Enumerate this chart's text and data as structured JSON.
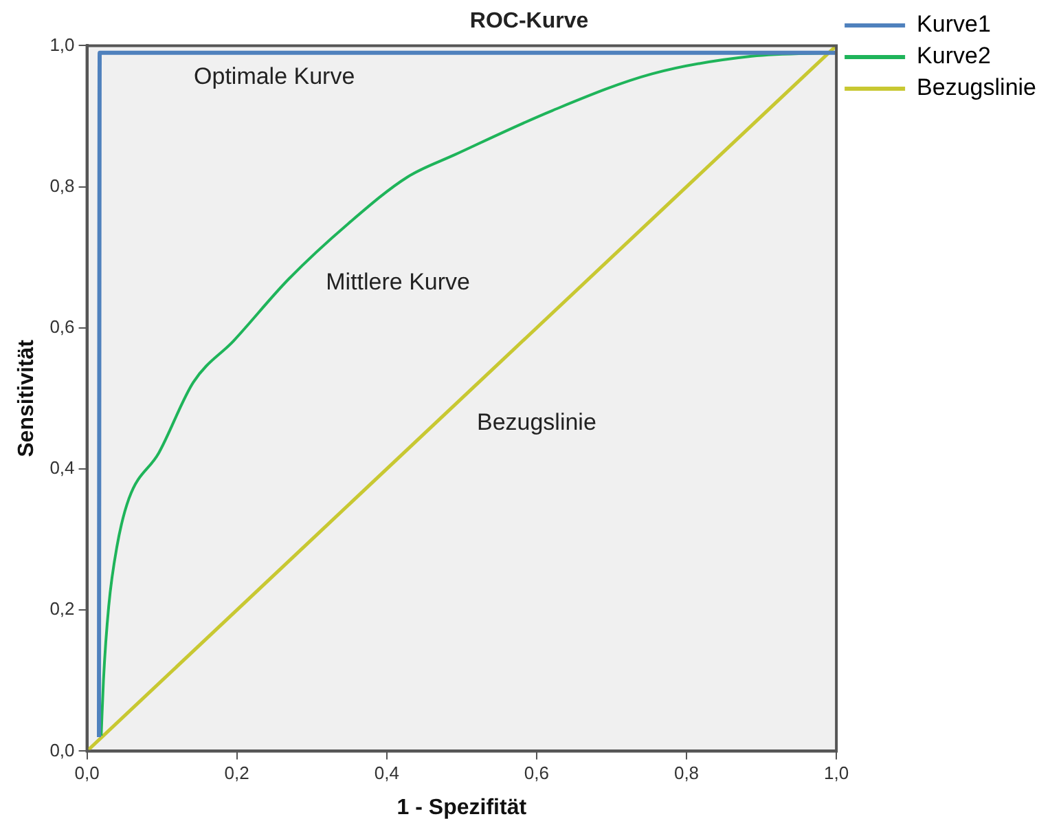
{
  "chart_data": {
    "type": "line",
    "title": "ROC-Kurve",
    "xlabel": "1 - Spezifität",
    "ylabel": "Sensitivität",
    "xlim": [
      0,
      1
    ],
    "ylim": [
      0,
      1
    ],
    "xticks": [
      {
        "value": 0,
        "label": "0,0"
      },
      {
        "value": 0.2,
        "label": "0,2"
      },
      {
        "value": 0.4,
        "label": "0,4"
      },
      {
        "value": 0.6,
        "label": "0,6"
      },
      {
        "value": 0.8,
        "label": "0,8"
      },
      {
        "value": 1,
        "label": "1,0"
      }
    ],
    "yticks": [
      {
        "value": 0,
        "label": "0,0"
      },
      {
        "value": 0.2,
        "label": "0,2"
      },
      {
        "value": 0.4,
        "label": "0,4"
      },
      {
        "value": 0.6,
        "label": "0,6"
      },
      {
        "value": 0.8,
        "label": "0,8"
      },
      {
        "value": 1,
        "label": "1,0"
      }
    ],
    "grid": false,
    "legend": "top right",
    "marker": "none",
    "line_style": "solid",
    "series": [
      {
        "name": "Kurve1",
        "color": "#4f81bd",
        "x": [
          0.016,
          0.017,
          1.0
        ],
        "values": [
          0.02,
          0.99,
          0.99
        ]
      },
      {
        "name": "Kurve2",
        "color": "#1fb45a",
        "x": [
          0.019,
          0.022,
          0.029,
          0.04,
          0.056,
          0.096,
          0.142,
          0.196,
          0.269,
          0.349,
          0.428,
          0.49,
          0.621,
          0.754,
          0.887,
          1.0
        ],
        "values": [
          0.022,
          0.1,
          0.205,
          0.29,
          0.358,
          0.423,
          0.523,
          0.582,
          0.669,
          0.748,
          0.814,
          0.845,
          0.908,
          0.96,
          0.985,
          0.99
        ]
      },
      {
        "name": "Bezugslinie",
        "color": "#c8c832",
        "x": [
          0,
          1
        ],
        "values": [
          0,
          1
        ]
      }
    ],
    "annotations": [
      "Optimale Kurve",
      "Mittlere Kurve",
      "Bezugslinie"
    ]
  }
}
